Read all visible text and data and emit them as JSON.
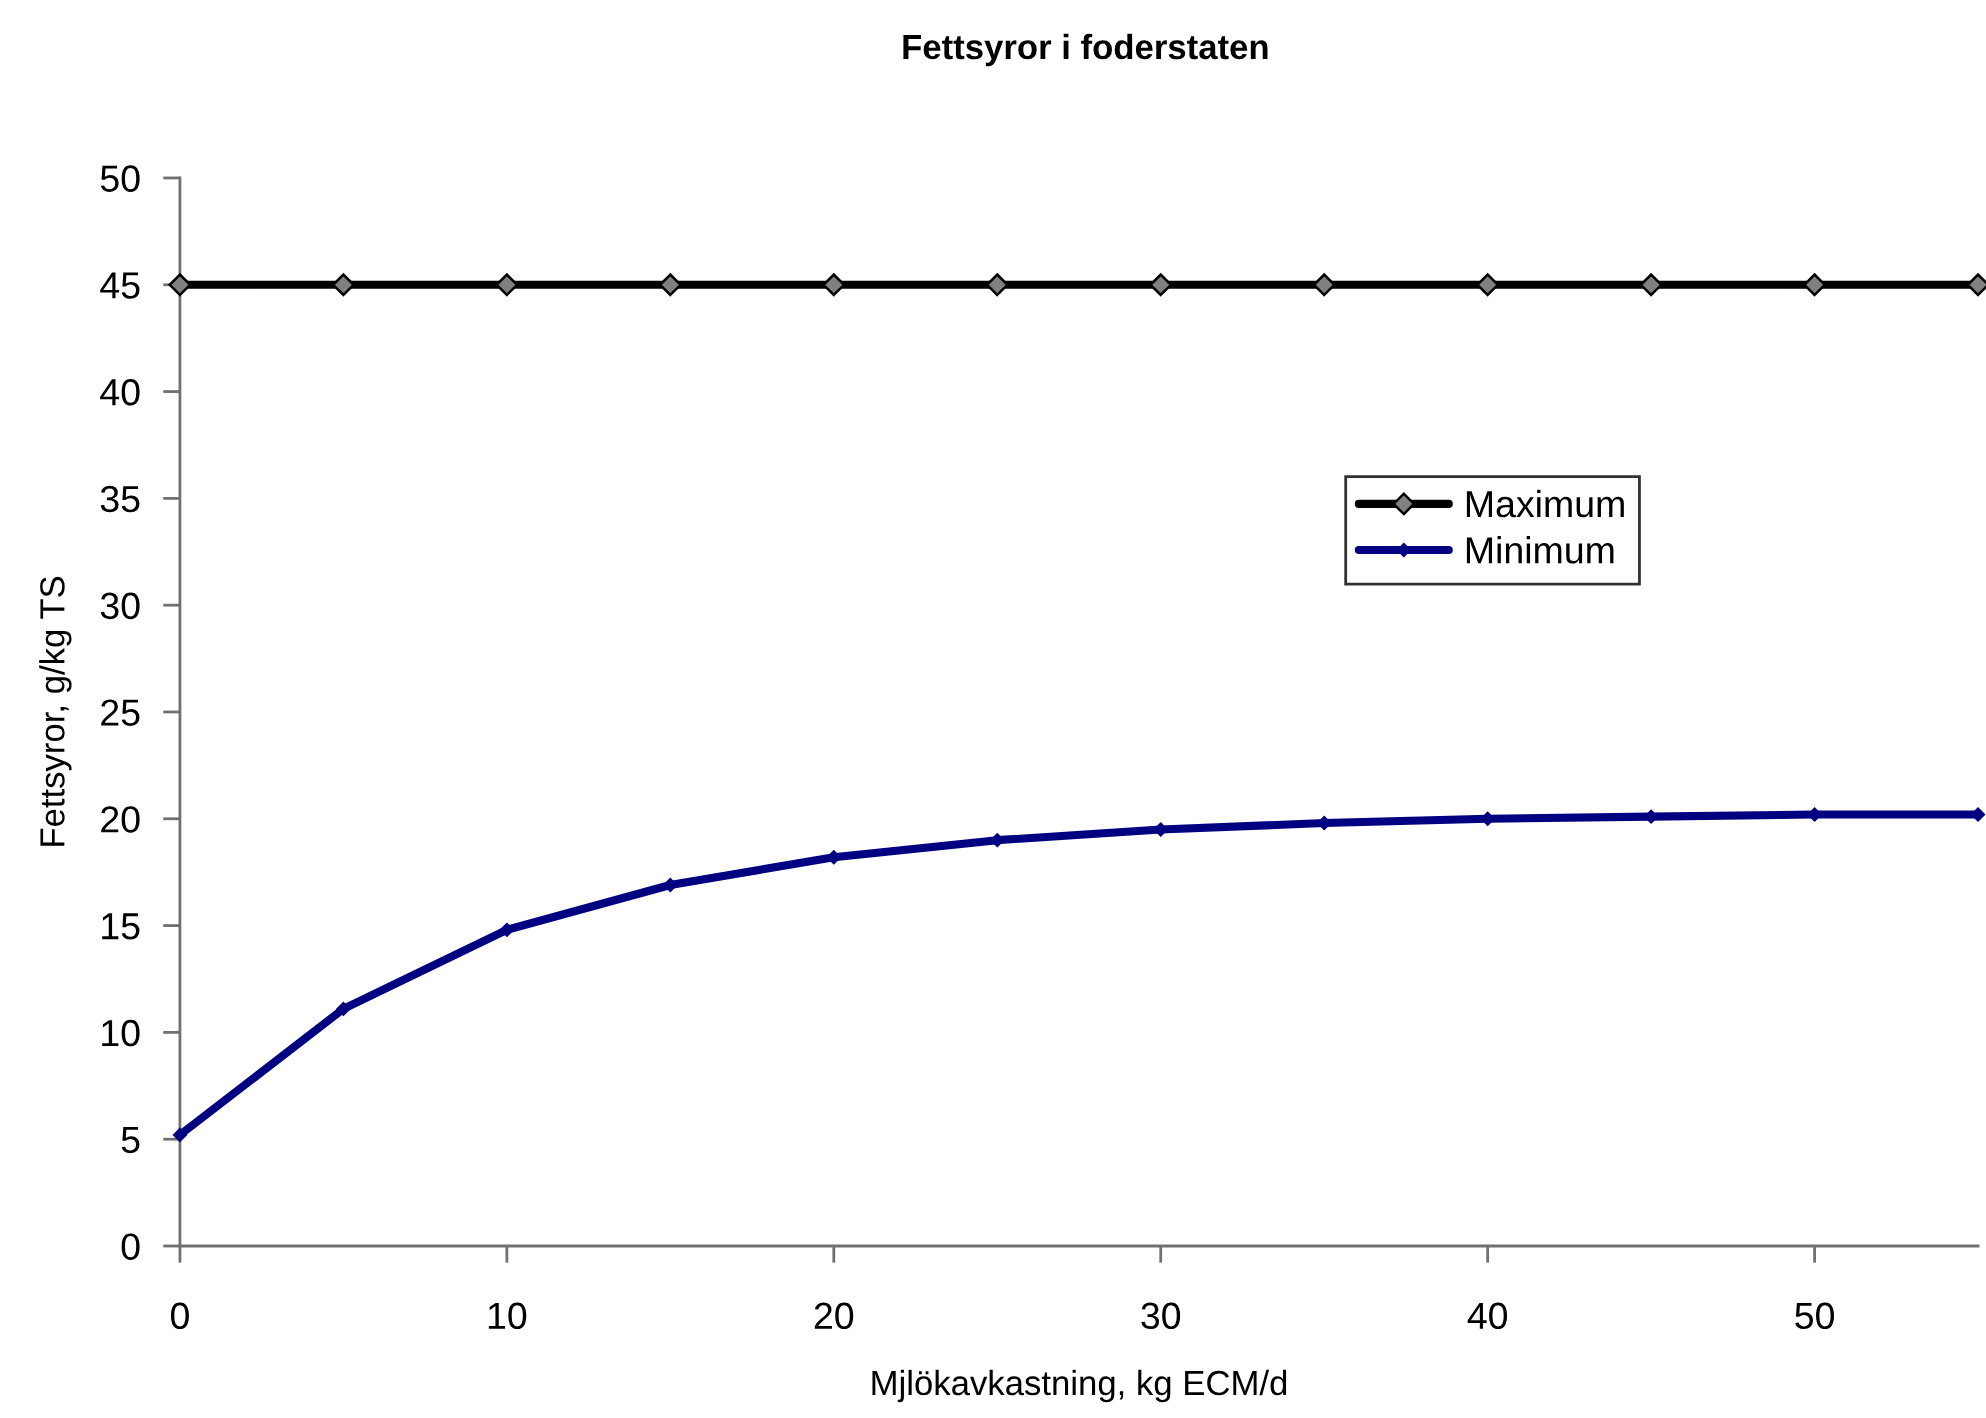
{
  "chart_data": {
    "type": "line",
    "title": "Fettsyror i foderstaten",
    "xlabel": "Mjlökavkastning, kg ECM/d",
    "ylabel": "Fettsyror, g/kg TS",
    "x": [
      0,
      5,
      10,
      15,
      20,
      25,
      30,
      35,
      40,
      45,
      50,
      55
    ],
    "series": [
      {
        "name": "Maximum",
        "color": "#000000",
        "values": [
          45,
          45,
          45,
          45,
          45,
          45,
          45,
          45,
          45,
          45,
          45,
          45
        ]
      },
      {
        "name": "Minimum",
        "color": "#000080",
        "values": [
          5.2,
          11.1,
          14.8,
          16.9,
          18.2,
          19.0,
          19.5,
          19.8,
          20.0,
          20.1,
          20.2,
          20.2
        ]
      }
    ],
    "xlim": [
      0,
      55
    ],
    "xticks": [
      0,
      10,
      20,
      30,
      40,
      50
    ],
    "ylim": [
      0,
      50
    ],
    "yticks": [
      0,
      5,
      10,
      15,
      20,
      25,
      30,
      35,
      40,
      45,
      50
    ],
    "grid": false,
    "legend": "right",
    "marker": "diamond",
    "line_style": "solid"
  }
}
